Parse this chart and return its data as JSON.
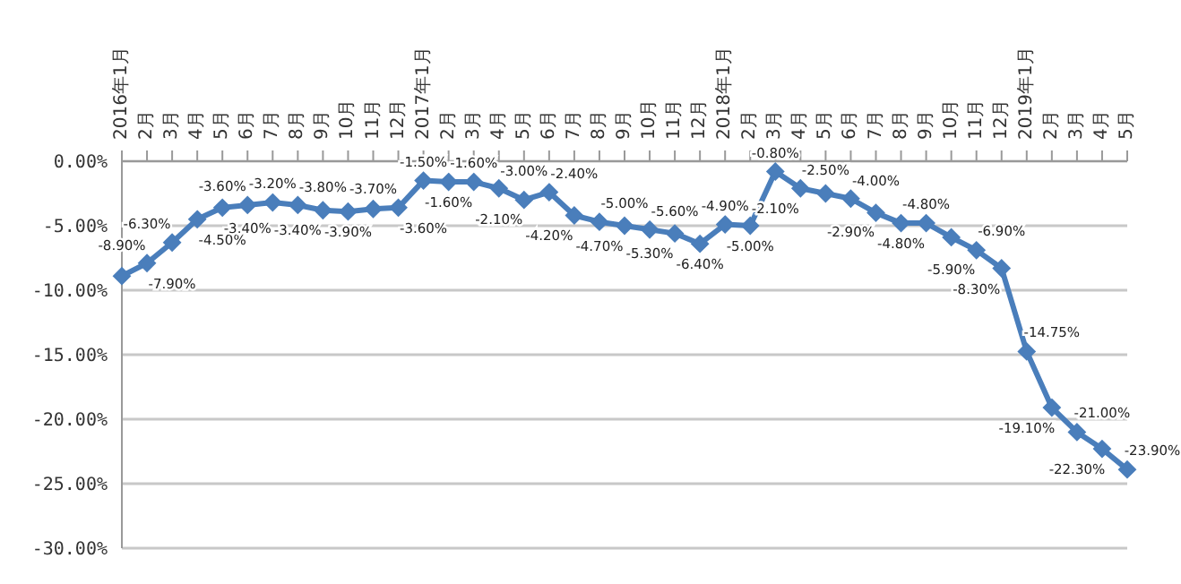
{
  "chart_data": {
    "type": "line",
    "categories": [
      "2016年1月",
      "2月",
      "3月",
      "4月",
      "5月",
      "6月",
      "7月",
      "8月",
      "9月",
      "10月",
      "11月",
      "12月",
      "2017年1月",
      "2月",
      "3月",
      "4月",
      "5月",
      "6月",
      "7月",
      "8月",
      "9月",
      "10月",
      "11月",
      "12月",
      "2018年1月",
      "2月",
      "3月",
      "4月",
      "5月",
      "6月",
      "7月",
      "8月",
      "9月",
      "10月",
      "11月",
      "12月",
      "2019年1月",
      "2月",
      "3月",
      "4月",
      "5月"
    ],
    "series": [
      {
        "color": "#4a7ebb",
        "values": [
          -8.9,
          -7.9,
          -6.3,
          -4.5,
          -3.6,
          -3.4,
          -3.2,
          -3.4,
          -3.8,
          -3.9,
          -3.7,
          -3.6,
          -1.5,
          -1.6,
          -1.6,
          -2.1,
          -3.0,
          -2.4,
          -4.2,
          -4.7,
          -5.0,
          -5.3,
          -5.6,
          -6.4,
          -4.9,
          -5.0,
          -0.8,
          -2.1,
          -2.5,
          -2.9,
          -4.0,
          -4.8,
          -4.8,
          -5.9,
          -6.9,
          -8.3,
          -14.75,
          -19.1,
          -21.0,
          -22.3,
          -23.9
        ],
        "value_labels": [
          "-8.90%",
          "-7.90%",
          "-6.30%",
          "-4.50%",
          "-3.60%",
          "-3.40%",
          "-3.20%",
          "-3.40%",
          "-3.80%",
          "-3.90%",
          "-3.70%",
          "-3.60%",
          "-1.50%",
          "-1.60%",
          "-1.60%",
          "-2.10%",
          "-3.00%",
          "-2.40%",
          "-4.20%",
          "-4.70%",
          "-5.00%",
          "-5.30%",
          "-5.60%",
          "-6.40%",
          "-4.90%",
          "-5.00%",
          "-0.80%",
          "-2.10%",
          "-2.50%",
          "-2.90%",
          "-4.00%",
          "-4.80%",
          "-4.80%",
          "-5.90%",
          "-6.90%",
          "-8.30%",
          "-14.75%",
          "-19.10%",
          "-21.00%",
          "-22.30%",
          "-23.90%"
        ]
      }
    ],
    "ylim": [
      -30,
      0
    ],
    "yticks": [
      {
        "value": 0,
        "label": "0.00%"
      },
      {
        "value": -5,
        "label": "-5.00%"
      },
      {
        "value": -10,
        "label": "-10.00%"
      },
      {
        "value": -15,
        "label": "-15.00%"
      },
      {
        "value": -20,
        "label": "-20.00%"
      },
      {
        "value": -25,
        "label": "-25.00%"
      },
      {
        "value": -30,
        "label": "-30.00%"
      }
    ],
    "grid": "y",
    "marker": "diamond",
    "line_style": "solid",
    "legend": false
  }
}
